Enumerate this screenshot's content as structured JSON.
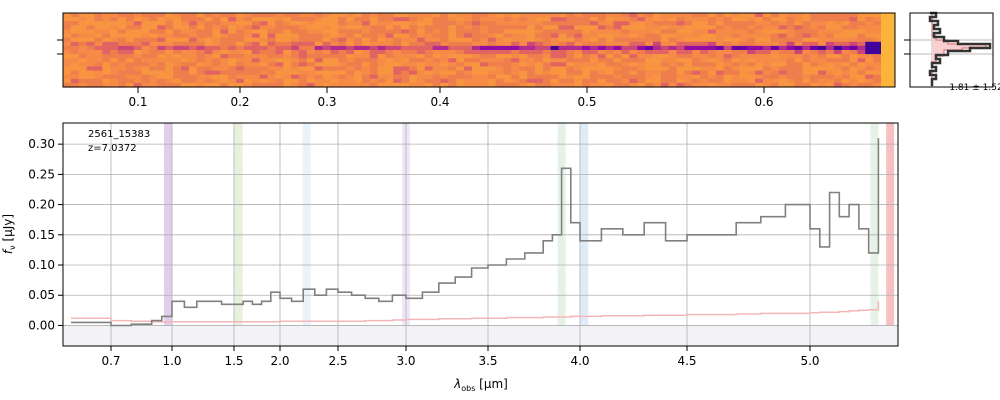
{
  "chart_data": [
    {
      "type": "heatmap",
      "panel": "2D spectrum",
      "colormap": "plasma",
      "x_tick_labels": [
        "0.1",
        "0.2",
        "0.3",
        "0.4",
        "0.5",
        "0.6"
      ],
      "trace_note": "dark trace along central row, strongest at right edge"
    },
    {
      "type": "line",
      "panel": "profile",
      "annotation": "1.81 ± 1.52",
      "colors": {
        "fill": "#f7c5c5",
        "line": "#e07a7a",
        "data": "#333333"
      }
    },
    {
      "type": "line",
      "panel": "1D spectrum",
      "annotation_lines": [
        "2561_15383",
        "z=7.0372"
      ],
      "xlabel_sym": "λ",
      "xlabel_sub": "obs",
      "xlabel_unit": " [μm]",
      "ylabel_sym": "f",
      "ylabel_sub": "ν",
      "ylabel_unit": " [μJy]",
      "xlim": [
        0.58,
        5.45
      ],
      "ylim": [
        -0.034,
        0.335
      ],
      "x_ticks": [
        0.7,
        1.0,
        1.5,
        2.0,
        2.5,
        3.0,
        3.5,
        4.0,
        4.5,
        5.0
      ],
      "x_tick_labels": [
        "0.7",
        "1.0",
        "1.5",
        "2.0",
        "2.5",
        "3.0",
        "3.5",
        "4.0",
        "4.5",
        "5.0"
      ],
      "y_ticks": [
        0.0,
        0.05,
        0.1,
        0.15,
        0.2,
        0.25,
        0.3
      ],
      "y_tick_labels": [
        "0.00",
        "0.05",
        "0.10",
        "0.15",
        "0.20",
        "0.25",
        "0.30"
      ],
      "grid": true,
      "x": [
        0.6,
        0.7,
        0.8,
        0.9,
        0.95,
        1.0,
        1.1,
        1.2,
        1.3,
        1.4,
        1.5,
        1.6,
        1.7,
        1.8,
        1.9,
        2.0,
        2.1,
        2.2,
        2.3,
        2.4,
        2.5,
        2.6,
        2.7,
        2.8,
        2.9,
        3.0,
        3.1,
        3.2,
        3.3,
        3.4,
        3.5,
        3.6,
        3.7,
        3.8,
        3.85,
        3.9,
        3.95,
        4.0,
        4.1,
        4.2,
        4.3,
        4.4,
        4.5,
        4.6,
        4.7,
        4.8,
        4.9,
        5.0,
        5.05,
        5.1,
        5.15,
        5.2,
        5.25,
        5.3,
        5.35
      ],
      "series": [
        {
          "color": "#808080",
          "values": [
            0.005,
            0.0,
            0.002,
            0.008,
            0.015,
            0.04,
            0.03,
            0.04,
            0.04,
            0.035,
            0.035,
            0.04,
            0.035,
            0.04,
            0.055,
            0.045,
            0.04,
            0.06,
            0.05,
            0.06,
            0.055,
            0.05,
            0.045,
            0.04,
            0.05,
            0.045,
            0.055,
            0.07,
            0.08,
            0.095,
            0.1,
            0.11,
            0.12,
            0.14,
            0.15,
            0.26,
            0.17,
            0.14,
            0.16,
            0.15,
            0.17,
            0.14,
            0.15,
            0.15,
            0.17,
            0.18,
            0.2,
            0.16,
            0.13,
            0.22,
            0.18,
            0.2,
            0.16,
            0.12,
            0.31
          ]
        },
        {
          "color": "#f4b6b6",
          "values": [
            0.012,
            0.008,
            0.007,
            0.006,
            0.006,
            0.006,
            0.006,
            0.006,
            0.006,
            0.006,
            0.006,
            0.006,
            0.006,
            0.006,
            0.006,
            0.007,
            0.007,
            0.007,
            0.007,
            0.007,
            0.007,
            0.007,
            0.008,
            0.008,
            0.009,
            0.01,
            0.01,
            0.011,
            0.011,
            0.012,
            0.012,
            0.013,
            0.013,
            0.014,
            0.014,
            0.014,
            0.015,
            0.015,
            0.016,
            0.016,
            0.017,
            0.017,
            0.018,
            0.018,
            0.019,
            0.02,
            0.02,
            0.021,
            0.022,
            0.022,
            0.023,
            0.024,
            0.025,
            0.026,
            0.04
          ]
        }
      ],
      "emission_bands": [
        {
          "x": 0.98,
          "color": "#c9a6d9"
        },
        {
          "x": 1.55,
          "color": "#d6e3c2"
        },
        {
          "x": 2.23,
          "color": "#d6eaf8"
        },
        {
          "x": 3.0,
          "color": "#e3d4ee"
        },
        {
          "x": 3.9,
          "color": "#cfe8cf"
        },
        {
          "x": 4.02,
          "color": "#c5dcf3"
        },
        {
          "x": 5.33,
          "color": "#cfe8cf"
        },
        {
          "x": 5.41,
          "color": "#f08d8d"
        }
      ]
    }
  ]
}
